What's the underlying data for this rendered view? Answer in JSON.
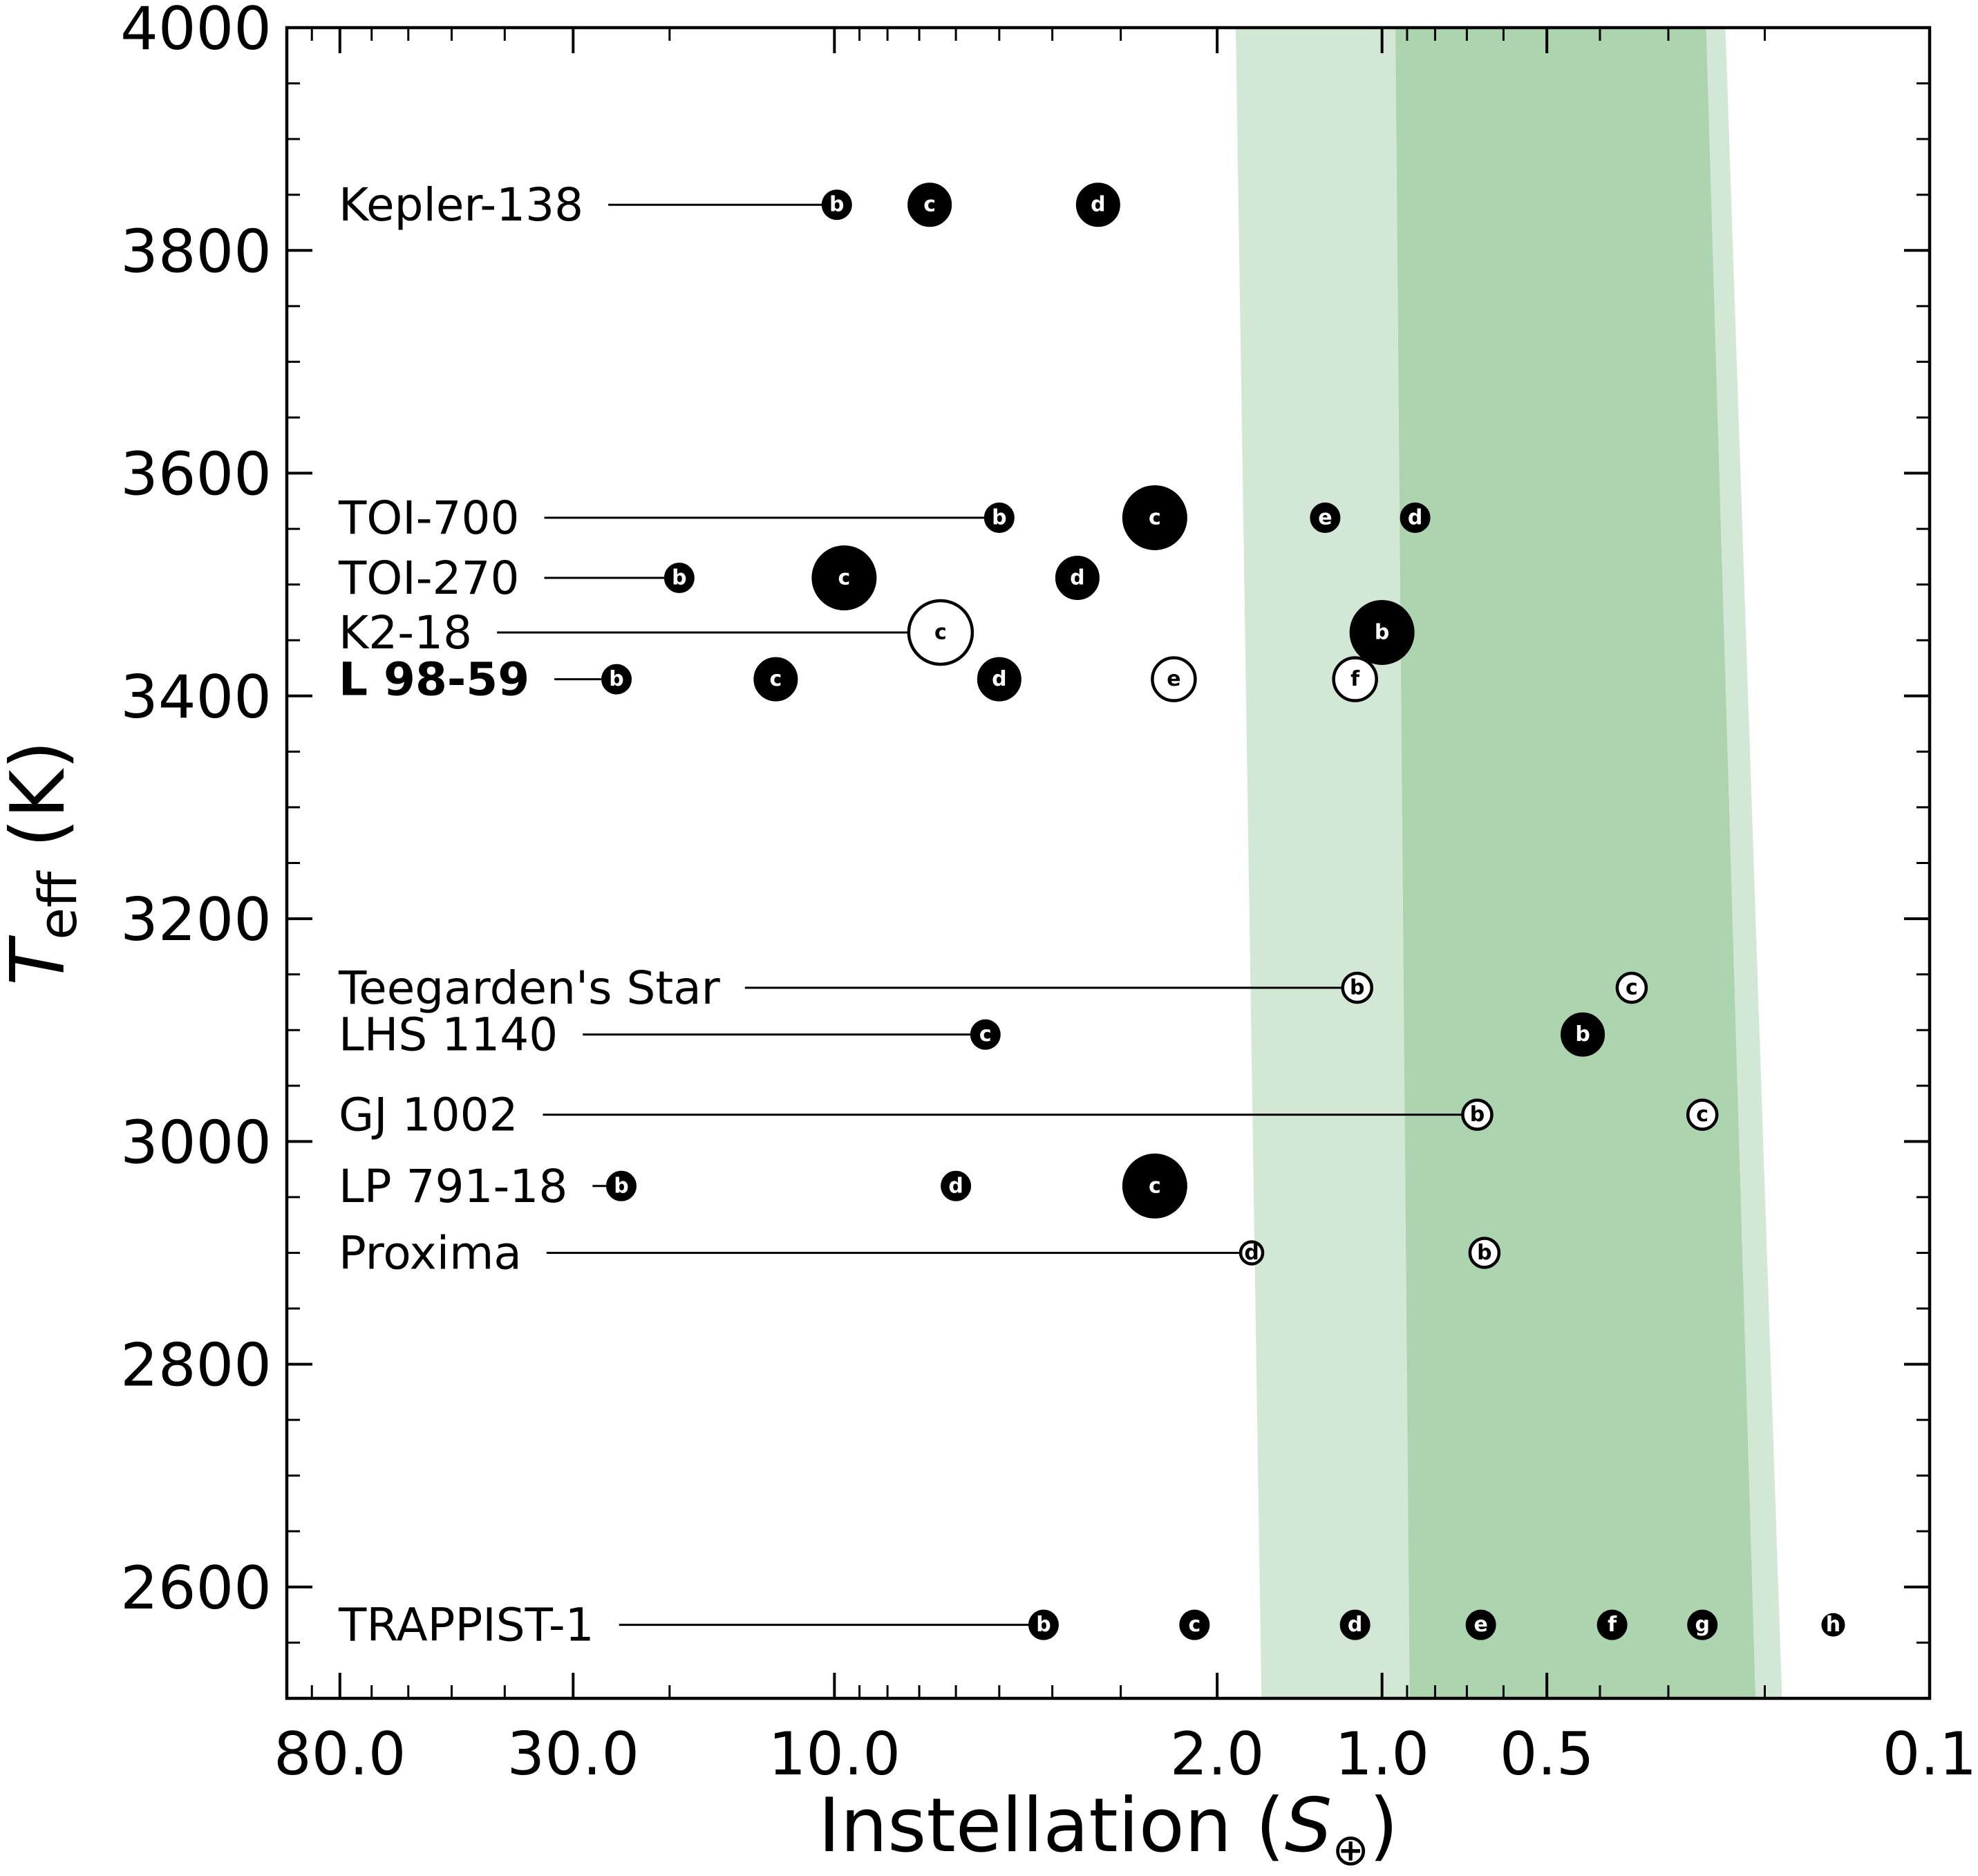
{
  "chart_data": {
    "type": "scatter",
    "xlabel": "Instellation (S⊕)",
    "ylabel": "Teff (K)",
    "xscale": "log",
    "x_inverted": true,
    "xlim": [
      100,
      0.1
    ],
    "ylim": [
      2500,
      4000
    ],
    "x_ticks": [
      {
        "value": 80,
        "label": "80.0"
      },
      {
        "value": 30,
        "label": "30.0"
      },
      {
        "value": 10,
        "label": "10.0"
      },
      {
        "value": 2,
        "label": "2.0"
      },
      {
        "value": 1,
        "label": "1.0"
      },
      {
        "value": 0.5,
        "label": "0.5"
      },
      {
        "value": 0.1,
        "label": "0.1"
      }
    ],
    "y_ticks": [
      2600,
      2800,
      3000,
      3200,
      3400,
      3600,
      3800,
      4000
    ],
    "habitable_zone": {
      "optimistic": {
        "color": "#d2e8d4",
        "at_teff_2500": [
          1.66,
          0.186
        ],
        "at_teff_4000": [
          1.85,
          0.236
        ]
      },
      "conservative": {
        "color": "#acd4ae",
        "at_teff_2500": [
          0.89,
          0.208
        ],
        "at_teff_4000": [
          0.945,
          0.256
        ]
      }
    },
    "systems": [
      {
        "name": "Kepler-138",
        "teff": 3841,
        "bold": false,
        "planets": [
          {
            "letter": "b",
            "s": 9.9,
            "size": 1,
            "filled": true
          },
          {
            "letter": "c",
            "s": 6.7,
            "size": 2,
            "filled": true
          },
          {
            "letter": "d",
            "s": 3.3,
            "size": 2,
            "filled": true
          }
        ]
      },
      {
        "name": "TOI-700",
        "teff": 3560,
        "bold": false,
        "planets": [
          {
            "letter": "b",
            "s": 5.0,
            "size": 1,
            "filled": true
          },
          {
            "letter": "c",
            "s": 2.6,
            "size": 3,
            "filled": true
          },
          {
            "letter": "e",
            "s": 1.27,
            "size": 1,
            "filled": true
          },
          {
            "letter": "d",
            "s": 0.87,
            "size": 1,
            "filled": true
          }
        ]
      },
      {
        "name": "TOI-270",
        "teff": 3506,
        "bold": false,
        "planets": [
          {
            "letter": "b",
            "s": 19.2,
            "size": 1,
            "filled": true
          },
          {
            "letter": "c",
            "s": 9.6,
            "size": 3,
            "filled": true
          },
          {
            "letter": "d",
            "s": 3.6,
            "size": 2,
            "filled": true
          }
        ]
      },
      {
        "name": "K2-18",
        "teff": 3457,
        "bold": false,
        "planets": [
          {
            "letter": "c",
            "s": 6.4,
            "size": 3,
            "filled": false
          },
          {
            "letter": "b",
            "s": 1.0,
            "size": 3,
            "filled": true
          }
        ]
      },
      {
        "name": "L 98-59",
        "teff": 3415,
        "bold": true,
        "planets": [
          {
            "letter": "b",
            "s": 25.0,
            "size": 1,
            "filled": true
          },
          {
            "letter": "c",
            "s": 12.8,
            "size": 2,
            "filled": true
          },
          {
            "letter": "d",
            "s": 5.0,
            "size": 2,
            "filled": true
          },
          {
            "letter": "e",
            "s": 2.4,
            "size": 2,
            "filled": false
          },
          {
            "letter": "f",
            "s": 1.12,
            "size": 2,
            "filled": false
          }
        ]
      },
      {
        "name": "Teegarden's Star",
        "teff": 3138,
        "bold": false,
        "planets": [
          {
            "letter": "b",
            "s": 1.11,
            "size": 1,
            "filled": false
          },
          {
            "letter": "c",
            "s": 0.35,
            "size": 1,
            "filled": false
          }
        ]
      },
      {
        "name": "LHS 1140",
        "teff": 3096,
        "bold": false,
        "planets": [
          {
            "letter": "c",
            "s": 5.3,
            "size": 1,
            "filled": true
          },
          {
            "letter": "b",
            "s": 0.43,
            "size": 2,
            "filled": true
          }
        ]
      },
      {
        "name": "GJ 1002",
        "teff": 3024,
        "bold": false,
        "planets": [
          {
            "letter": "b",
            "s": 0.67,
            "size": 1,
            "filled": false
          },
          {
            "letter": "c",
            "s": 0.26,
            "size": 1,
            "filled": false
          }
        ]
      },
      {
        "name": "LP 791-18",
        "teff": 2960,
        "bold": false,
        "planets": [
          {
            "letter": "b",
            "s": 24.5,
            "size": 1,
            "filled": true
          },
          {
            "letter": "d",
            "s": 6.0,
            "size": 1,
            "filled": true
          },
          {
            "letter": "c",
            "s": 2.6,
            "size": 3,
            "filled": true
          }
        ]
      },
      {
        "name": "Proxima",
        "teff": 2900,
        "bold": false,
        "planets": [
          {
            "letter": "d",
            "s": 1.73,
            "size": 0,
            "filled": false
          },
          {
            "letter": "b",
            "s": 0.65,
            "size": 1,
            "filled": false
          }
        ]
      },
      {
        "name": "TRAPPIST-1",
        "teff": 2566,
        "bold": false,
        "planets": [
          {
            "letter": "b",
            "s": 4.15,
            "size": 1,
            "filled": true
          },
          {
            "letter": "c",
            "s": 2.2,
            "size": 1,
            "filled": true
          },
          {
            "letter": "d",
            "s": 1.12,
            "size": 1,
            "filled": true
          },
          {
            "letter": "e",
            "s": 0.66,
            "size": 1,
            "filled": true
          },
          {
            "letter": "f",
            "s": 0.38,
            "size": 1,
            "filled": true
          },
          {
            "letter": "g",
            "s": 0.26,
            "size": 1,
            "filled": true
          },
          {
            "letter": "h",
            "s": 0.15,
            "size": 0,
            "filled": true
          }
        ]
      }
    ]
  }
}
